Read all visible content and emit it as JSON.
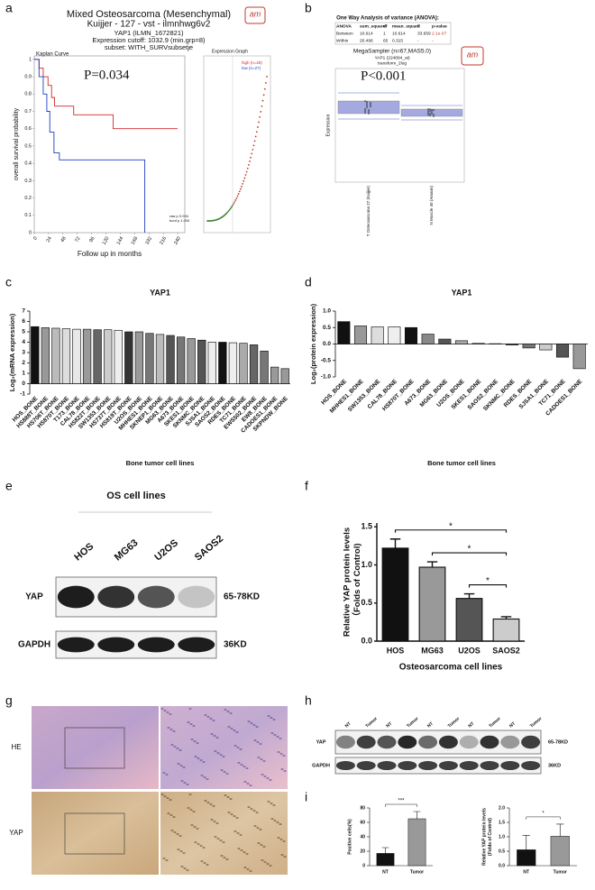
{
  "panel_labels": [
    "a",
    "b",
    "c",
    "d",
    "e",
    "f",
    "g",
    "h",
    "i"
  ],
  "panel_a": {
    "title": "Mixed Osteosarcoma (Mesenchymal)",
    "dataset": "Kuijjer - 127 - vst - ilmnhwg6v2",
    "gene": "YAP1 (ILMN_1672821)",
    "cutoff": "Expression cutoff: 1032.9 (min.grp=8)",
    "subset": "subset: WITH_SURVsubsetje",
    "plot_name": "Kaplan Curve",
    "logo": "am",
    "expression_graph": "Expression Graph",
    "pvalues": [
      "raw p 0.034",
      "bonf p 1.000"
    ]
  },
  "panel_b": {
    "anova_title": "One Way Analysis of variance (ANOVA):",
    "anova": {
      "header": [
        "ANOVA",
        "sum_square",
        "df",
        "mean_square",
        "F",
        "p-value"
      ],
      "rows": [
        [
          "Between",
          "10.614",
          "1",
          "10.614",
          "33.659",
          "2.1e-07"
        ],
        [
          "Within",
          "20.496",
          "65",
          "0.315",
          "-",
          "-"
        ]
      ]
    },
    "title": "MegaSampler (n=67,MAS5.0)",
    "gene": "YAP1 (224894_at)",
    "transform": "transform_2log",
    "logo": "am",
    "p": "P<0.001",
    "y_label": "Expression",
    "groups": [
      "T Osteosarcoma 27 (Kuijjer)",
      "N Muscle 40 (Amann)"
    ]
  },
  "panel_e": {
    "title": "OS cell lines",
    "lanes": [
      "HOS",
      "MG63",
      "U2OS",
      "SAOS2"
    ],
    "rows": [
      {
        "label": "YAP",
        "size": "65-78KD"
      },
      {
        "label": "GAPDH",
        "size": "36KD"
      }
    ]
  },
  "panel_g": {
    "rows": [
      "HE",
      "YAP"
    ]
  },
  "panel_h": {
    "lanes": [
      "NT",
      "Tumor",
      "NT",
      "Tumor",
      "NT",
      "Tumor",
      "NT",
      "Tumor",
      "NT",
      "Tumor"
    ],
    "rows": [
      {
        "label": "YAP",
        "size": "65-78KD"
      },
      {
        "label": "GAPDH",
        "size": "36KD"
      }
    ]
  },
  "chart_data": [
    {
      "type": "line",
      "y_label": "overall survival probability",
      "x_label": "Follow up in months",
      "annotation": "P=0.034",
      "xlim": [
        0,
        252
      ],
      "xticks": [
        0,
        24,
        48,
        72,
        96,
        120,
        144,
        168,
        192,
        216,
        240
      ],
      "ylim": [
        0,
        1.02
      ],
      "yticks": [
        0,
        0.1,
        0.2,
        0.3,
        0.4,
        0.5,
        0.6,
        0.7,
        0.8,
        0.9,
        1
      ],
      "series": [
        {
          "name": "high (n=26)",
          "color": "#d62728",
          "x": [
            0,
            8,
            8,
            15,
            15,
            23,
            23,
            29,
            29,
            34,
            34,
            66,
            66,
            132,
            132,
            240
          ],
          "values": [
            1,
            1,
            0.95,
            0.95,
            0.9,
            0.9,
            0.85,
            0.85,
            0.78,
            0.78,
            0.73,
            0.73,
            0.68,
            0.68,
            0.6,
            0.6
          ]
        },
        {
          "name": "low (n=27)",
          "color": "#1f3fbf",
          "x": [
            0,
            8,
            8,
            15,
            15,
            21,
            21,
            26,
            26,
            33,
            33,
            42,
            42,
            185,
            185
          ],
          "values": [
            1,
            1,
            0.9,
            0.9,
            0.8,
            0.8,
            0.7,
            0.7,
            0.58,
            0.58,
            0.46,
            0.46,
            0.42,
            0.42,
            0
          ]
        }
      ]
    },
    {
      "type": "bar",
      "title": "YAP1",
      "y_label": "Log₂(mRNA expression)",
      "x_label": "Bone tumor cell lines",
      "categories": [
        "HOS_BONE",
        "HS888T_BONE",
        "HS706T_BONE",
        "HS870T_BONE",
        "T173_BONE",
        "CAL78_BONE",
        "HS822T_BONE",
        "SW1353_BONE",
        "HS737T_BONE",
        "HS819T_BONE",
        "U2OS_BONE",
        "MHHES1_BONE",
        "SKNEP1_BONE",
        "MG63_BONE",
        "A673_BONE",
        "SKES1_BONE",
        "SKNMC_BONE",
        "SJSA1_BONE",
        "SAOS2_BONE",
        "RDES_BONE",
        "TC71_BONE",
        "EWS502_BONE",
        "EW8_BONE",
        "CADOES1_BONE",
        "SKPNDW_BONE"
      ],
      "values": [
        5.5,
        5.4,
        5.35,
        5.3,
        5.25,
        5.25,
        5.2,
        5.2,
        5.15,
        5.0,
        5.0,
        4.85,
        4.75,
        4.65,
        4.5,
        4.35,
        4.2,
        4.0,
        4.0,
        3.95,
        3.9,
        3.75,
        3.15,
        1.6,
        1.45
      ],
      "colors": [
        "#111",
        "#999",
        "#bbb",
        "#ddd",
        "#e8e8e8",
        "#999",
        "#666",
        "#ccc",
        "#eee",
        "#333",
        "#999",
        "#777",
        "#bbb",
        "#555",
        "#777",
        "#999",
        "#555",
        "#eee",
        "#111",
        "#eee",
        "#aaa",
        "#666",
        "#777",
        "#999",
        "#999"
      ],
      "ylim": [
        -1,
        7
      ],
      "yticks": [
        -1,
        0,
        1,
        2,
        3,
        4,
        5,
        6,
        7
      ]
    },
    {
      "type": "bar",
      "title": "YAP1",
      "y_label": "Log₂(protein expression)",
      "x_label": "Bone tumor cell lines",
      "categories": [
        "HOS_BONE",
        "MHHES1_BONE",
        "SW1353_BONE",
        "CAL78_BONE",
        "HS870T_BONE",
        "A673_BONE",
        "MG63_BONE",
        "U2OS_BONE",
        "SKES1_BONE",
        "SAOS2_BONE",
        "SKNMC_BONE",
        "RDES_BONE",
        "SJSA1_BONE",
        "TC71_BONE",
        "CADOES1_BONE"
      ],
      "values": [
        0.68,
        0.55,
        0.52,
        0.52,
        0.5,
        0.3,
        0.15,
        0.1,
        0.02,
        0.01,
        -0.03,
        -0.12,
        -0.18,
        -0.4,
        -0.75
      ],
      "colors": [
        "#111",
        "#999",
        "#ddd",
        "#eee",
        "#111",
        "#888",
        "#555",
        "#aaa",
        "#ddd",
        "#eee",
        "#555",
        "#777",
        "#ccc",
        "#555",
        "#999"
      ],
      "ylim": [
        -1,
        1
      ],
      "yticks": [
        {
          "value": -1,
          "label": "-1.0"
        },
        {
          "value": -0.5,
          "label": "-0.5"
        },
        {
          "value": 0,
          "label": "0.0"
        },
        {
          "value": 0.5,
          "label": "0.5"
        },
        {
          "value": 1,
          "label": "1.0"
        }
      ]
    },
    {
      "type": "bar",
      "y_label": [
        "Relative YAP protein levels",
        "（Folds of Control)"
      ],
      "x_label": "Osteosarcoma cell lines",
      "categories": [
        "HOS",
        "MG63",
        "U2OS",
        "SAOS2"
      ],
      "values": [
        1.22,
        0.97,
        0.56,
        0.29
      ],
      "errors": [
        0.12,
        0.07,
        0.06,
        0.03
      ],
      "colors": [
        "#111",
        "#999",
        "#555",
        "#ccc"
      ],
      "ylim": [
        0,
        1.55
      ],
      "yticks": [
        {
          "value": 0,
          "label": "0.0"
        },
        {
          "value": 0.5,
          "label": "0.5"
        },
        {
          "value": 1,
          "label": "1.0"
        },
        {
          "value": 1.5,
          "label": "1.5"
        }
      ],
      "significance": [
        {
          "label": "*",
          "between": [
            "HOS",
            "SAOS2"
          ]
        },
        {
          "label": "*",
          "between": [
            "MG63",
            "SAOS2"
          ]
        },
        {
          "label": "*",
          "between": [
            "U2OS",
            "SAOS2"
          ]
        }
      ]
    },
    {
      "type": "bar",
      "y_label": [
        "Positive cells(%)"
      ],
      "categories": [
        "NT",
        "Tumor"
      ],
      "values": [
        17,
        65
      ],
      "errors": [
        8,
        10
      ],
      "colors": [
        "#111",
        "#999"
      ],
      "ylim": [
        0,
        80
      ],
      "yticks": [
        0,
        20,
        40,
        60,
        80
      ],
      "significance": [
        {
          "label": "***",
          "between": [
            "NT",
            "Tumor"
          ]
        }
      ]
    },
    {
      "type": "bar",
      "y_label": [
        "Relative YAP protein levels",
        "(Folds of Control)"
      ],
      "categories": [
        "NT",
        "Tumor"
      ],
      "values": [
        0.55,
        1.02
      ],
      "errors": [
        0.5,
        0.42
      ],
      "colors": [
        "#111",
        "#999"
      ],
      "ylim": [
        0,
        2
      ],
      "yticks": [
        {
          "value": 0,
          "label": "0.0"
        },
        {
          "value": 0.5,
          "label": "0.5"
        },
        {
          "value": 1,
          "label": "1.0"
        },
        {
          "value": 1.5,
          "label": "1.5"
        },
        {
          "value": 2,
          "label": "2.0"
        }
      ],
      "significance": [
        {
          "label": "*",
          "between": [
            "NT",
            "Tumor"
          ]
        }
      ]
    }
  ]
}
